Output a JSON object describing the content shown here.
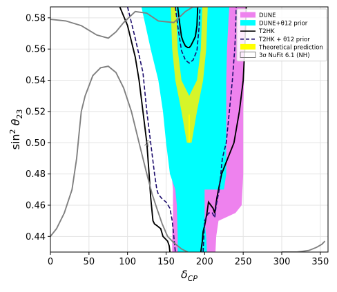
{
  "chart_data": {
    "type": "contour",
    "xlabel": "δ_CP",
    "ylabel": "sin² θ23",
    "xlim": [
      0,
      360
    ],
    "ylim": [
      0.43,
      0.587
    ],
    "xticks": [
      0,
      50,
      100,
      150,
      200,
      250,
      300,
      350
    ],
    "yticks": [
      0.44,
      0.46,
      0.48,
      0.5,
      0.52,
      0.54,
      0.56,
      0.58
    ],
    "xtick_labels": [
      "0",
      "50",
      "100",
      "150",
      "200",
      "250",
      "300",
      "350"
    ],
    "ytick_labels": [
      "0.44",
      "0.46",
      "0.48",
      "0.50",
      "0.52",
      "0.54",
      "0.56",
      "0.58"
    ],
    "grid": true,
    "legend_position": "top-right",
    "contour_label": "3σ",
    "colors": {
      "dune": "#ee82ee",
      "dune_prior": "#00ffff",
      "t2hk": "#000000",
      "t2hk_prior": "#1a0a6b",
      "theory": "#ffff00",
      "theory_band": "#d6f529",
      "nufit": "#808080"
    },
    "legend": [
      {
        "label": "DUNE",
        "style": "patch",
        "color": "#ee82ee"
      },
      {
        "label": "DUNE+θ12 prior",
        "style": "patch",
        "color": "#00ffff"
      },
      {
        "label": "T2HK",
        "style": "line",
        "color": "#000000",
        "dash": false
      },
      {
        "label": "T2HK + θ12 prior",
        "style": "line",
        "color": "#1a0a6b",
        "dash": true
      },
      {
        "label": "Theoretical prediction",
        "style": "patch",
        "color": "#ffff00"
      },
      {
        "label": "3σ NuFit 6.1 (NH)",
        "style": "outline",
        "color": "#808080"
      }
    ],
    "regions": {
      "dune": [
        [
          158,
          0.43
        ],
        [
          158,
          0.44
        ],
        [
          159,
          0.455
        ],
        [
          159,
          0.47
        ],
        [
          157,
          0.48
        ],
        [
          153,
          0.5
        ],
        [
          150,
          0.52
        ],
        [
          147,
          0.54
        ],
        [
          145,
          0.56
        ],
        [
          144,
          0.587
        ],
        [
          254,
          0.587
        ],
        [
          253,
          0.58
        ],
        [
          252,
          0.56
        ],
        [
          251,
          0.54
        ],
        [
          250,
          0.52
        ],
        [
          250,
          0.5
        ],
        [
          250,
          0.48
        ],
        [
          248,
          0.46
        ],
        [
          240,
          0.455
        ],
        [
          218,
          0.45
        ],
        [
          215,
          0.44
        ],
        [
          214,
          0.43
        ]
      ],
      "dune_prior": [
        [
          165,
          0.43
        ],
        [
          165,
          0.44
        ],
        [
          164,
          0.46
        ],
        [
          162,
          0.47
        ],
        [
          155,
          0.48
        ],
        [
          150,
          0.5
        ],
        [
          146,
          0.52
        ],
        [
          140,
          0.54
        ],
        [
          130,
          0.56
        ],
        [
          118,
          0.587
        ],
        [
          232,
          0.587
        ],
        [
          231,
          0.58
        ],
        [
          229,
          0.56
        ],
        [
          228,
          0.54
        ],
        [
          228,
          0.52
        ],
        [
          228,
          0.5
        ],
        [
          228,
          0.48
        ],
        [
          225,
          0.47
        ],
        [
          200,
          0.47
        ],
        [
          200,
          0.45
        ],
        [
          202,
          0.44
        ],
        [
          203,
          0.43
        ]
      ],
      "theory_band": [
        [
          156,
          0.587
        ],
        [
          158,
          0.56
        ],
        [
          162,
          0.54
        ],
        [
          170,
          0.52
        ],
        [
          177,
          0.5
        ],
        [
          183,
          0.5
        ],
        [
          190,
          0.52
        ],
        [
          198,
          0.54
        ],
        [
          202,
          0.56
        ],
        [
          204,
          0.587
        ]
      ],
      "theory_hole": [
        [
          163,
          0.587
        ],
        [
          165,
          0.56
        ],
        [
          170,
          0.54
        ],
        [
          180,
          0.53
        ],
        [
          190,
          0.54
        ],
        [
          195,
          0.56
        ],
        [
          197,
          0.587
        ]
      ]
    },
    "series": [
      {
        "name": "T2HK",
        "style": "solid",
        "color": "#000000",
        "x": [
          90,
          100,
          110,
          115,
          120,
          125,
          128,
          130,
          132,
          133,
          135,
          138,
          143,
          146,
          152,
          154,
          155
        ],
        "y": [
          0.587,
          0.575,
          0.555,
          0.54,
          0.52,
          0.5,
          0.48,
          0.465,
          0.455,
          0.45,
          0.448,
          0.447,
          0.445,
          0.44,
          0.437,
          0.434,
          0.43
        ]
      },
      {
        "name": "T2HK",
        "style": "solid",
        "color": "#000000",
        "x": [
          195,
          197,
          198,
          200,
          203,
          205,
          208,
          211,
          213,
          216,
          222,
          230,
          238,
          245,
          250,
          252,
          254
        ],
        "y": [
          0.43,
          0.437,
          0.443,
          0.447,
          0.455,
          0.462,
          0.46,
          0.458,
          0.455,
          0.465,
          0.48,
          0.49,
          0.5,
          0.52,
          0.54,
          0.56,
          0.587
        ]
      },
      {
        "name": "T2HK",
        "style": "solid",
        "color": "#000000",
        "x": [
          165,
          168,
          170,
          172,
          175,
          178,
          180,
          182,
          185,
          188,
          190,
          191
        ],
        "y": [
          0.587,
          0.575,
          0.568,
          0.565,
          0.562,
          0.561,
          0.561,
          0.562,
          0.565,
          0.568,
          0.575,
          0.587
        ]
      },
      {
        "name": "T2HK + θ12 prior",
        "style": "dash",
        "color": "#1a0a6b",
        "x": [
          100,
          110,
          120,
          125,
          130,
          135,
          138,
          140,
          145,
          150,
          155,
          158,
          160,
          161,
          162
        ],
        "y": [
          0.587,
          0.567,
          0.545,
          0.52,
          0.5,
          0.48,
          0.47,
          0.467,
          0.464,
          0.462,
          0.458,
          0.45,
          0.44,
          0.435,
          0.43
        ]
      },
      {
        "name": "T2HK + θ12 prior",
        "style": "dash",
        "color": "#1a0a6b",
        "x": [
          198,
          199,
          200,
          205,
          210,
          213,
          215,
          219,
          223,
          228,
          232,
          236,
          239,
          240,
          241
        ],
        "y": [
          0.43,
          0.44,
          0.45,
          0.455,
          0.455,
          0.452,
          0.46,
          0.47,
          0.49,
          0.5,
          0.52,
          0.54,
          0.56,
          0.57,
          0.587
        ]
      },
      {
        "name": "T2HK + θ12 prior",
        "style": "dash",
        "color": "#1a0a6b",
        "x": [
          162,
          165,
          170,
          175,
          180,
          185,
          190,
          193,
          194
        ],
        "y": [
          0.587,
          0.575,
          0.559,
          0.553,
          0.551,
          0.553,
          0.559,
          0.575,
          0.587
        ]
      },
      {
        "name": "3σ NuFit 6.1 (NH)",
        "style": "solid",
        "color": "#808080",
        "x": [
          0,
          20,
          40,
          60,
          75,
          85,
          95,
          110,
          125,
          140,
          160,
          175,
          185,
          192
        ],
        "y": [
          0.579,
          0.578,
          0.575,
          0.569,
          0.567,
          0.571,
          0.577,
          0.584,
          0.583,
          0.578,
          0.577,
          0.584,
          0.587,
          0.587
        ]
      },
      {
        "name": "3σ NuFit 6.1 (NH)",
        "style": "solid",
        "color": "#808080",
        "x": [
          0,
          8,
          18,
          28,
          34,
          37,
          40,
          45,
          55,
          65,
          75,
          85,
          95,
          105,
          115,
          125,
          132,
          138,
          145,
          152,
          160,
          170,
          178
        ],
        "y": [
          0.44,
          0.445,
          0.455,
          0.47,
          0.49,
          0.505,
          0.52,
          0.53,
          0.543,
          0.548,
          0.549,
          0.545,
          0.535,
          0.52,
          0.5,
          0.48,
          0.467,
          0.458,
          0.448,
          0.44,
          0.436,
          0.432,
          0.43
        ]
      },
      {
        "name": "3σ NuFit 6.1 (NH)",
        "style": "solid",
        "color": "#808080",
        "x": [
          300,
          320,
          335,
          345,
          352,
          356
        ],
        "y": [
          0.43,
          0.43,
          0.431,
          0.433,
          0.435,
          0.437
        ]
      }
    ]
  }
}
